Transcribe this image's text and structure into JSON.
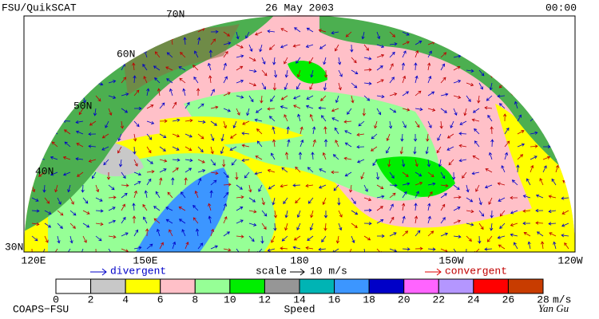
{
  "header": {
    "left": "FSU/QuikSCAT",
    "center": "26 May 2003",
    "right": "00:00"
  },
  "latitude_labels": [
    "70N",
    "60N",
    "50N",
    "40N",
    "30N"
  ],
  "longitude_labels": [
    "120E",
    "150E",
    "180",
    "150W",
    "120W"
  ],
  "legend": {
    "divergent": "divergent",
    "scale": "scale",
    "scale_value": "10 m/s",
    "convergent": "convergent"
  },
  "colorbar": {
    "ticks": [
      0,
      2,
      4,
      6,
      8,
      10,
      12,
      14,
      16,
      18,
      20,
      22,
      24,
      26,
      28
    ],
    "unit": "m/s",
    "label": "Speed",
    "colors": [
      "#ffffff",
      "#c8c8c8",
      "#ffff00",
      "#ffc0c8",
      "#96ff96",
      "#00ee00",
      "#969696",
      "#00b4b4",
      "#3c96ff",
      "#0000c8",
      "#ff64ff",
      "#b496ff",
      "#ff0000",
      "#c83c00",
      "#000000"
    ]
  },
  "footer": {
    "left": "COAPS−FSU",
    "right": "Yan Gu"
  }
}
